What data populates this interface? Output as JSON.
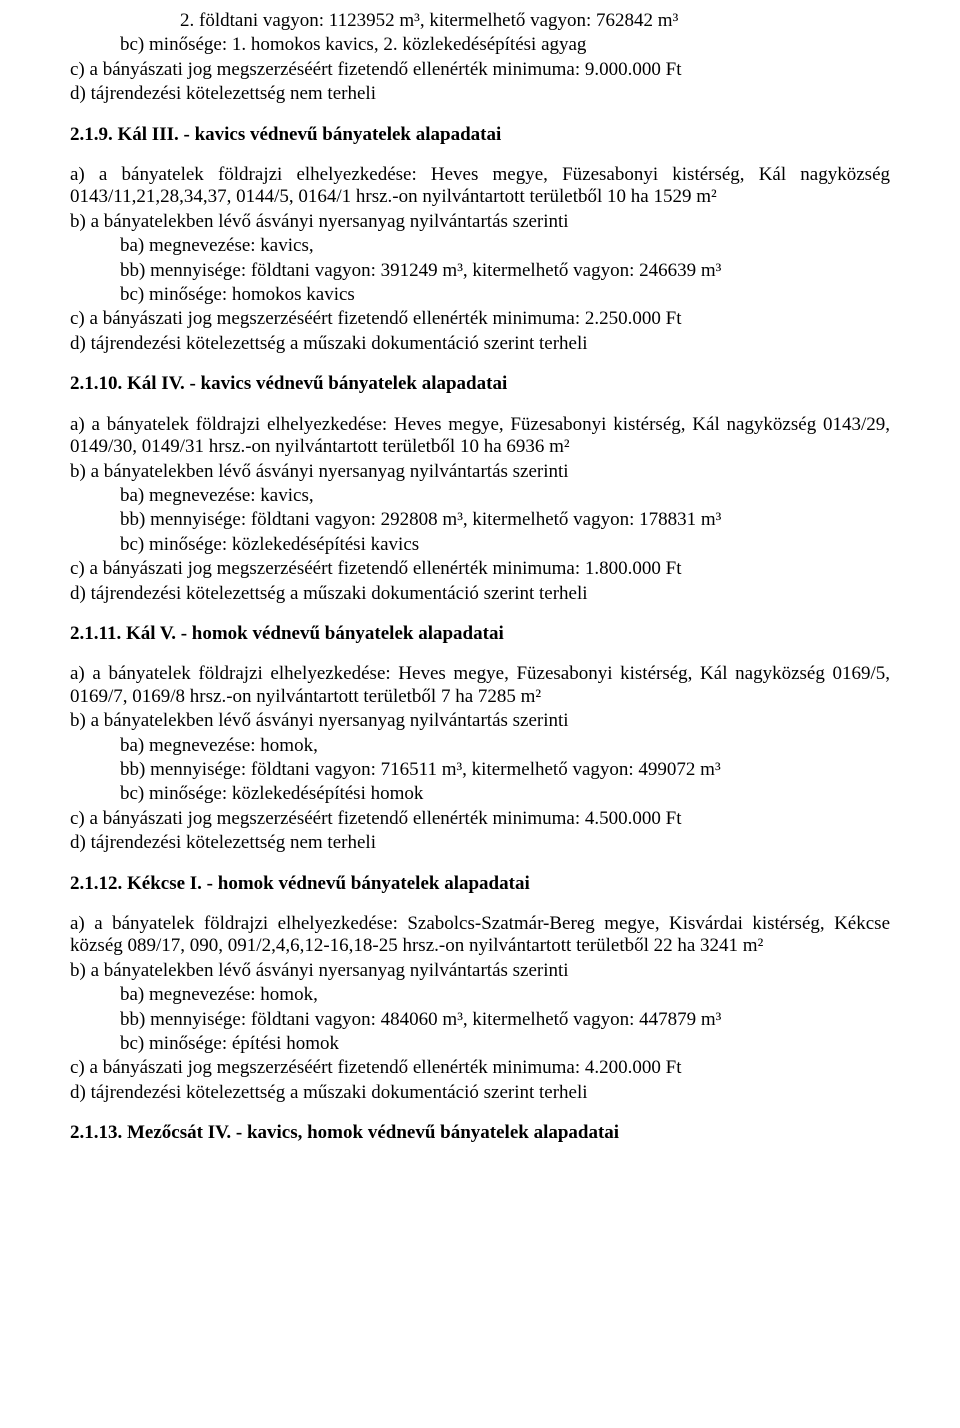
{
  "intro": {
    "line1": "2. földtani vagyon: 1123952 m³, kitermelhető vagyon: 762842 m³",
    "line2": "bc) minősége: 1. homokos kavics, 2. közlekedésépítési agyag",
    "line3": "c) a bányászati jog megszerzéséért fizetendő ellenérték minimuma: 9.000.000 Ft",
    "line4": "d) tájrendezési kötelezettség nem terheli"
  },
  "s219": {
    "heading": "2.1.9. Kál III. - kavics védnevű bányatelek alapadatai",
    "a": "a) a bányatelek földrajzi elhelyezkedése: Heves megye, Füzesabonyi kistérség, Kál nagyközség 0143/11,21,28,34,37, 0144/5, 0164/1 hrsz.-on nyilvántartott területből 10 ha 1529 m²",
    "b": "b) a bányatelekben lévő ásványi nyersanyag nyilvántartás szerinti",
    "ba": "ba) megnevezése: kavics,",
    "bb": "bb) mennyisége: földtani vagyon: 391249 m³, kitermelhető vagyon: 246639 m³",
    "bc": "bc) minősége: homokos kavics",
    "c": "c) a bányászati jog megszerzéséért fizetendő ellenérték minimuma: 2.250.000 Ft",
    "d": "d) tájrendezési kötelezettség a műszaki dokumentáció szerint terheli"
  },
  "s2110": {
    "heading": "2.1.10. Kál IV. - kavics védnevű bányatelek alapadatai",
    "a": "a) a bányatelek földrajzi elhelyezkedése: Heves megye, Füzesabonyi kistérség, Kál nagyközség 0143/29, 0149/30, 0149/31 hrsz.-on nyilvántartott területből 10 ha 6936 m²",
    "b": "b) a bányatelekben lévő ásványi nyersanyag nyilvántartás szerinti",
    "ba": "ba) megnevezése: kavics,",
    "bb": "bb) mennyisége: földtani vagyon: 292808 m³, kitermelhető vagyon: 178831 m³",
    "bc": "bc) minősége: közlekedésépítési kavics",
    "c": "c) a bányászati jog megszerzéséért fizetendő ellenérték minimuma: 1.800.000 Ft",
    "d": "d) tájrendezési kötelezettség a műszaki dokumentáció szerint terheli"
  },
  "s2111": {
    "heading": "2.1.11. Kál V. - homok védnevű bányatelek alapadatai",
    "a": "a) a bányatelek földrajzi elhelyezkedése: Heves megye, Füzesabonyi kistérség, Kál nagyközség 0169/5, 0169/7, 0169/8 hrsz.-on nyilvántartott területből 7 ha 7285 m²",
    "b": "b) a bányatelekben lévő ásványi nyersanyag nyilvántartás szerinti",
    "ba": "ba) megnevezése: homok,",
    "bb": "bb) mennyisége: földtani vagyon: 716511 m³, kitermelhető vagyon: 499072 m³",
    "bc": "bc) minősége: közlekedésépítési homok",
    "c": "c) a bányászati jog megszerzéséért fizetendő ellenérték minimuma: 4.500.000 Ft",
    "d": "d) tájrendezési kötelezettség nem terheli"
  },
  "s2112": {
    "heading": "2.1.12. Kékcse I. - homok védnevű bányatelek alapadatai",
    "a": "a) a bányatelek földrajzi elhelyezkedése: Szabolcs-Szatmár-Bereg megye, Kisvárdai kistérség, Kékcse község 089/17, 090, 091/2,4,6,12-16,18-25 hrsz.-on nyilvántartott területből 22 ha 3241 m²",
    "b": "b) a bányatelekben lévő ásványi nyersanyag nyilvántartás szerinti",
    "ba": "ba) megnevezése: homok,",
    "bb": "bb) mennyisége: földtani vagyon: 484060 m³, kitermelhető vagyon: 447879 m³",
    "bc": "bc) minősége: építési homok",
    "c": "c) a bányászati jog megszerzéséért fizetendő ellenérték minimuma: 4.200.000 Ft",
    "d": "d) tájrendezési kötelezettség a műszaki dokumentáció szerint terheli"
  },
  "s2113": {
    "heading": "2.1.13. Mezőcsát IV. - kavics, homok védnevű bányatelek alapadatai"
  }
}
